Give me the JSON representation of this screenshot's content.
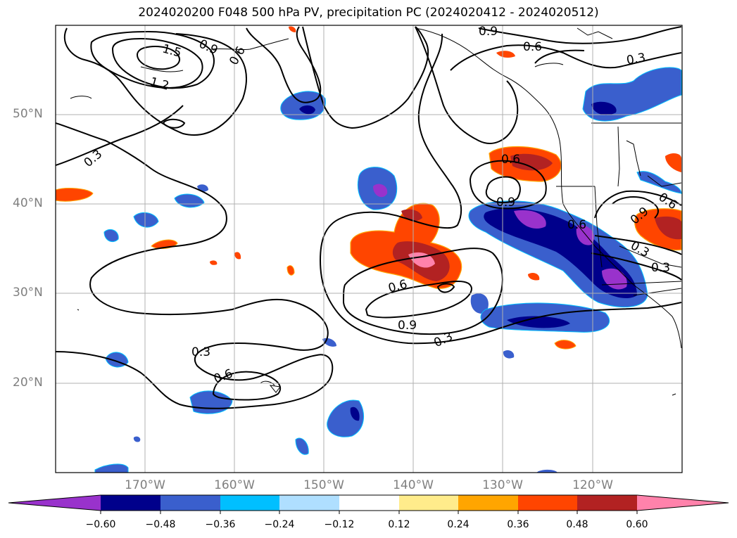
{
  "title": "2024020200 F048 500 hPa PV, precipitation PC (2024020412 - 2024020512)",
  "lat_labels": [
    "50°N",
    "40°N",
    "30°N",
    "20°N"
  ],
  "lon_labels": [
    "170°W",
    "160°W",
    "150°W",
    "140°W",
    "130°W",
    "120°W"
  ],
  "contour_labels": [
    "1.5",
    "1.2",
    "0.9",
    "0.6",
    "0.3",
    "0.3",
    "0.6",
    "0.9",
    "0.6",
    "0.3",
    "0.6",
    "0.9",
    "0.6",
    "0.9",
    "0.3",
    "0.3",
    "0.6",
    "0.9",
    "0.6",
    "0.3"
  ],
  "colorbar": {
    "tick_labels": [
      "−0.60",
      "−0.48",
      "−0.36",
      "−0.24",
      "−0.12",
      "0.12",
      "0.24",
      "0.36",
      "0.48",
      "0.60"
    ],
    "colors": [
      "#9932cc",
      "#00008b",
      "#3a5fcd",
      "#00bfff",
      "#afdfff",
      "#ffffff",
      "#ffec8b",
      "#ffa500",
      "#ff4500",
      "#b22222",
      "#ff82ab"
    ]
  },
  "chart_data": {
    "type": "map",
    "variables": [
      "500 hPa PV",
      "precipitation PC"
    ],
    "lat_range": [
      10,
      60
    ],
    "lon_range": [
      -180,
      -110
    ],
    "pv_contour_levels": [
      0.3,
      0.6,
      0.9,
      1.2,
      1.5
    ],
    "precip_levels": [
      -0.6,
      -0.48,
      -0.36,
      -0.24,
      -0.12,
      0.12,
      0.24,
      0.36,
      0.48,
      0.6
    ]
  }
}
